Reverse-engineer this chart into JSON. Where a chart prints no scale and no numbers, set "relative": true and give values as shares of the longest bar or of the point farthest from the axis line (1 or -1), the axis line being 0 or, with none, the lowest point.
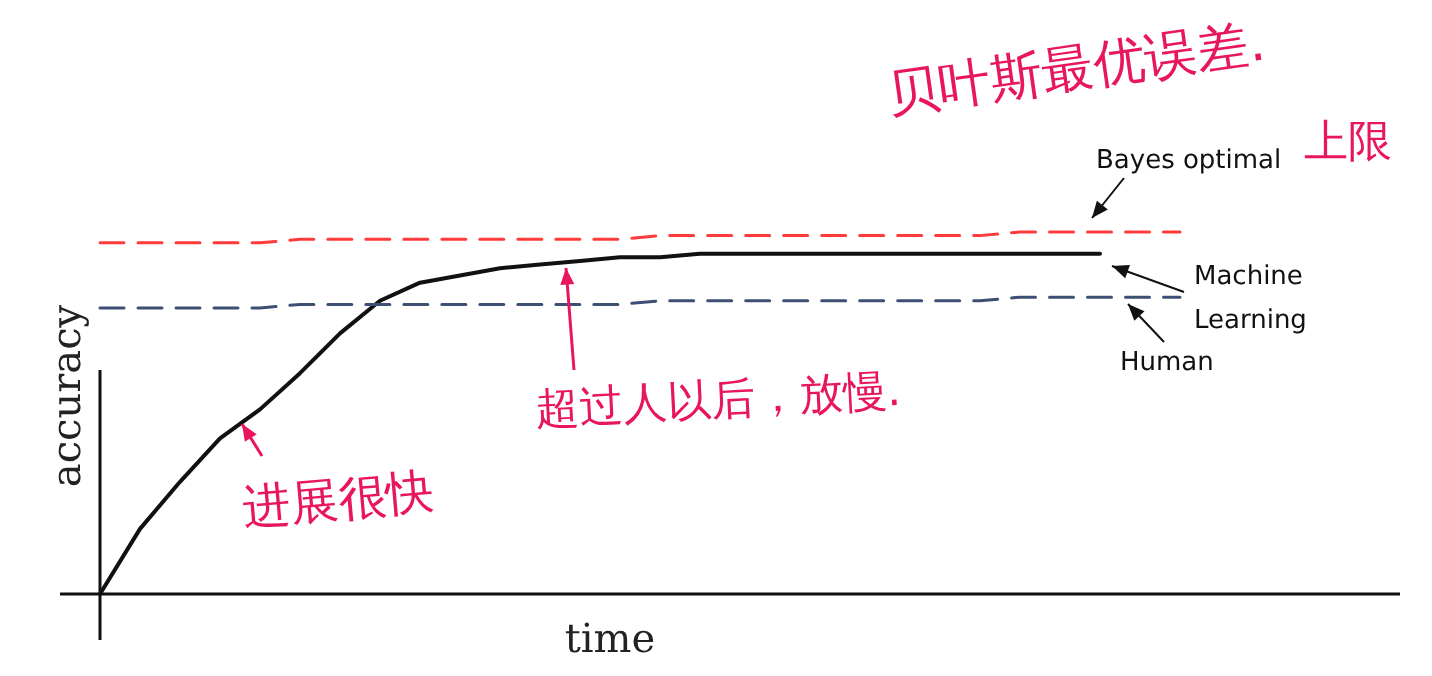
{
  "chart_data": {
    "type": "line",
    "relative": true,
    "xlabel": "time",
    "ylabel": "accuracy",
    "categories": [
      null,
      null,
      null,
      null,
      null,
      null,
      null,
      null,
      null,
      null,
      null,
      null,
      null,
      null,
      null,
      null,
      null,
      null,
      null,
      null,
      null,
      null,
      null,
      null,
      null,
      null,
      null,
      null
    ],
    "series": [
      {
        "name": "Bayes optimal",
        "color": "#ff3b3b",
        "line_style": "dashed",
        "values": [
          0.97,
          0.97,
          0.97,
          0.97,
          0.97,
          0.98,
          0.98,
          0.98,
          0.98,
          0.98,
          0.98,
          0.98,
          0.98,
          0.98,
          0.99,
          0.99,
          0.99,
          0.99,
          0.99,
          0.99,
          0.99,
          0.99,
          0.99,
          1.0,
          1.0,
          1.0,
          1.0,
          1.0
        ]
      },
      {
        "name": "Machine Learning",
        "color": "#111111",
        "line_style": "solid",
        "values": [
          0,
          0.18,
          0.31,
          0.43,
          0.51,
          0.61,
          0.72,
          0.81,
          0.86,
          0.88,
          0.9,
          0.91,
          0.92,
          0.93,
          0.93,
          0.94,
          0.94,
          0.94,
          0.94,
          0.94,
          0.94,
          0.94,
          0.94,
          0.94,
          0.94,
          0.94,
          null,
          null
        ]
      },
      {
        "name": "Human",
        "color": "#3d4f73",
        "line_style": "dashed",
        "values": [
          0.79,
          0.79,
          0.79,
          0.79,
          0.79,
          0.8,
          0.8,
          0.8,
          0.8,
          0.8,
          0.8,
          0.8,
          0.8,
          0.8,
          0.81,
          0.81,
          0.81,
          0.81,
          0.81,
          0.81,
          0.81,
          0.81,
          0.81,
          0.82,
          0.82,
          0.82,
          0.82,
          0.82
        ]
      }
    ],
    "annotations": [
      "贝叶斯最优误差.",
      "上限",
      "进展很快",
      "超过人以后，放慢."
    ]
  }
}
